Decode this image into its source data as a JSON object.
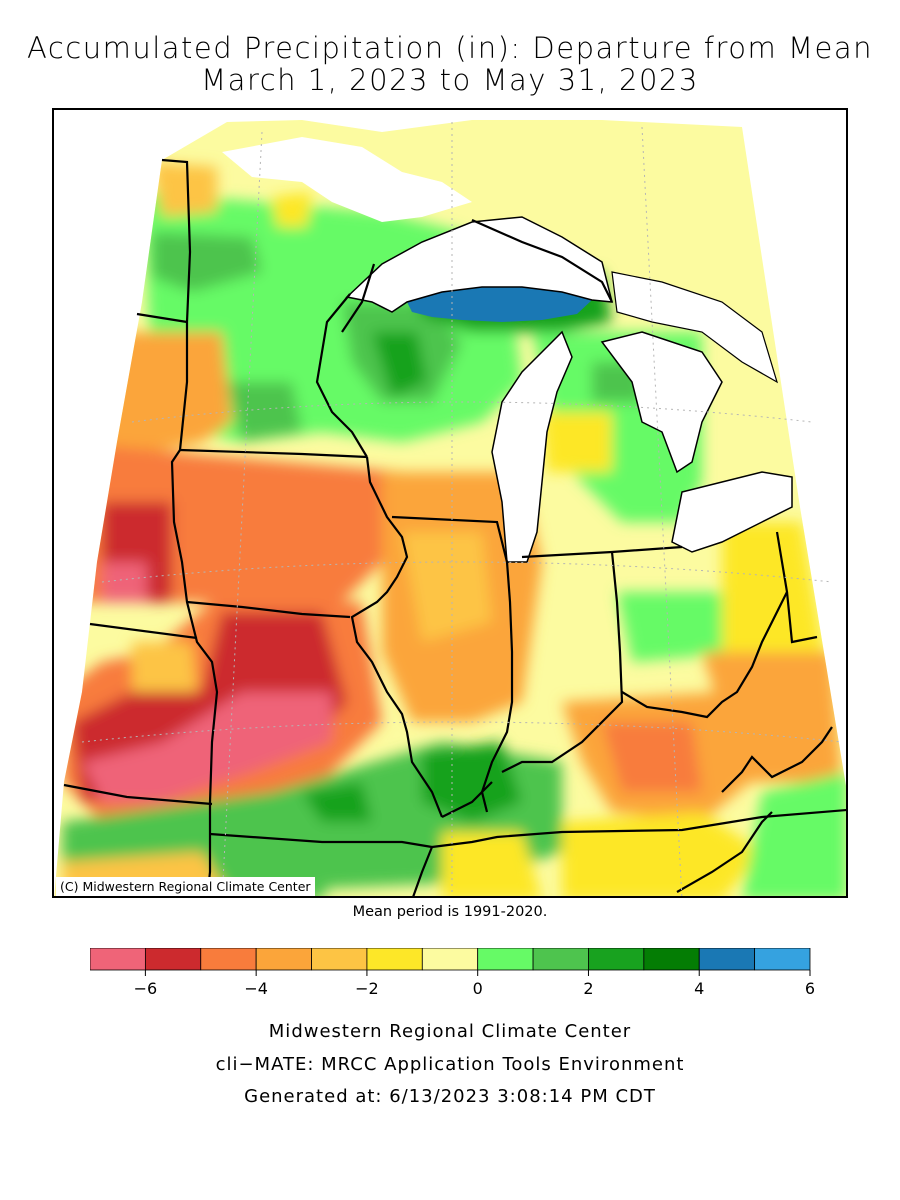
{
  "title": {
    "line1": "Accumulated Precipitation (in): Departure from Mean",
    "line2": "March 1, 2023 to May 31, 2023"
  },
  "map": {
    "credit": "(C) Midwestern Regional Climate Center",
    "region": "Upper Midwest / Great Lakes",
    "mean_note": "Mean period is 1991-2020."
  },
  "legend": {
    "units": "in",
    "bins": [
      {
        "min": -7,
        "max": -6,
        "color": "#ef6478"
      },
      {
        "min": -6,
        "max": -5,
        "color": "#cc2a2e"
      },
      {
        "min": -5,
        "max": -4,
        "color": "#f87c3c"
      },
      {
        "min": -4,
        "max": -3,
        "color": "#fba53a"
      },
      {
        "min": -3,
        "max": -2,
        "color": "#fdc444"
      },
      {
        "min": -2,
        "max": -1,
        "color": "#fde728"
      },
      {
        "min": -1,
        "max": 0,
        "color": "#fcfba0"
      },
      {
        "min": 0,
        "max": 1,
        "color": "#66fa66"
      },
      {
        "min": 1,
        "max": 2,
        "color": "#4ec44e"
      },
      {
        "min": 2,
        "max": 3,
        "color": "#18a21f"
      },
      {
        "min": 3,
        "max": 4,
        "color": "#047d04"
      },
      {
        "min": 4,
        "max": 5,
        "color": "#1a78b4"
      },
      {
        "min": 5,
        "max": 6,
        "color": "#35a2e0"
      }
    ],
    "tick_labels": [
      "−6",
      "−4",
      "−2",
      "0",
      "2",
      "4",
      "6"
    ],
    "tick_values": [
      -6,
      -4,
      -2,
      0,
      2,
      4,
      6
    ],
    "range": [
      -7,
      6
    ]
  },
  "footer": {
    "line1": "Midwestern Regional Climate Center",
    "line2": "cli−MATE: MRCC Application Tools Environment",
    "line3": "Generated at: 6/13/2023 3:08:14 PM CDT"
  }
}
